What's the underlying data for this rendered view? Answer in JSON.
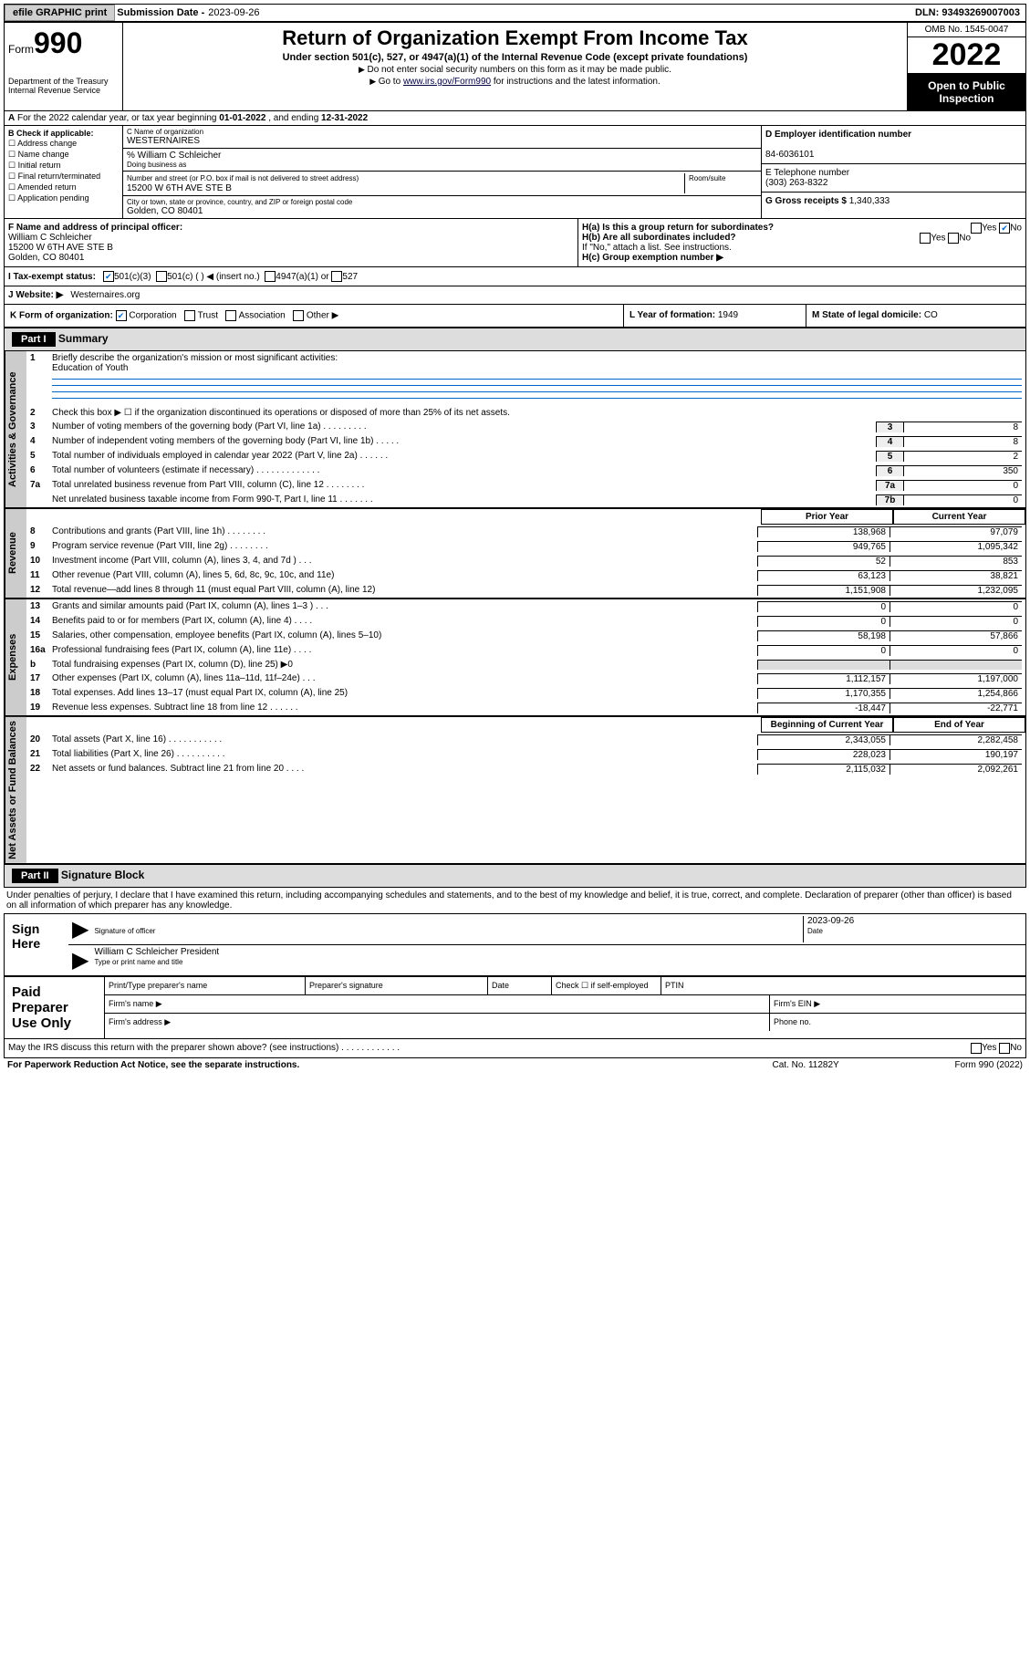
{
  "top": {
    "efile": "efile GRAPHIC print",
    "subdate_lbl": "Submission Date -",
    "subdate": "2023-09-26",
    "dln_lbl": "DLN:",
    "dln": "93493269007003"
  },
  "header": {
    "form_prefix": "Form",
    "form_num": "990",
    "dept": "Department of the Treasury\nInternal Revenue Service",
    "title": "Return of Organization Exempt From Income Tax",
    "subtitle": "Under section 501(c), 527, or 4947(a)(1) of the Internal Revenue Code (except private foundations)",
    "note1": "Do not enter social security numbers on this form as it may be made public.",
    "note2_pre": "Go to ",
    "note2_link": "www.irs.gov/Form990",
    "note2_post": " for instructions and the latest information.",
    "omb": "OMB No. 1545-0047",
    "year": "2022",
    "inspect": "Open to Public Inspection"
  },
  "lineA": {
    "text_pre": "For the 2022 calendar year, or tax year beginning ",
    "begin": "01-01-2022",
    "mid": " , and ending ",
    "end": "12-31-2022"
  },
  "colB": {
    "hdr": "B Check if applicable:",
    "items": [
      "Address change",
      "Name change",
      "Initial return",
      "Final return/terminated",
      "Amended return",
      "Application pending"
    ]
  },
  "colC": {
    "name_lbl": "C Name of organization",
    "name": "WESTERNAIRES",
    "care_lbl": "% William C Schleicher",
    "dba_lbl": "Doing business as",
    "dba": "",
    "street_lbl": "Number and street (or P.O. box if mail is not delivered to street address)",
    "street": "15200 W 6TH AVE STE B",
    "room_lbl": "Room/suite",
    "city_lbl": "City or town, state or province, country, and ZIP or foreign postal code",
    "city": "Golden, CO  80401"
  },
  "colD": {
    "ein_lbl": "D Employer identification number",
    "ein": "84-6036101",
    "tel_lbl": "E Telephone number",
    "tel": "(303) 263-8322",
    "gross_lbl": "G Gross receipts $",
    "gross": "1,340,333"
  },
  "rowF": {
    "lbl": "F Name and address of principal officer:",
    "name": "William C Schleicher",
    "addr1": "15200 W 6TH AVE STE B",
    "addr2": "Golden, CO  80401"
  },
  "rowH": {
    "ha": "H(a)  Is this a group return for subordinates?",
    "ha_yes": "Yes",
    "ha_no": "No",
    "hb": "H(b)  Are all subordinates included?",
    "hb_yes": "Yes",
    "hb_no": "No",
    "hb_note": "If \"No,\" attach a list. See instructions.",
    "hc": "H(c)  Group exemption number ▶"
  },
  "rowI": {
    "lbl": "I  Tax-exempt status:",
    "a": "501(c)(3)",
    "b": "501(c) (  ) ◀ (insert no.)",
    "c": "4947(a)(1) or",
    "d": "527"
  },
  "rowJ": {
    "lbl": "J  Website: ▶",
    "val": "Westernaires.org"
  },
  "rowK": {
    "lbl": "K Form of organization:",
    "corp": "Corporation",
    "trust": "Trust",
    "assoc": "Association",
    "other": "Other ▶",
    "L": "L Year of formation:",
    "Lval": "1949",
    "M": "M State of legal domicile:",
    "Mval": "CO"
  },
  "part1": {
    "hdr": "Part I",
    "title": "Summary",
    "q1": "Briefly describe the organization's mission or most significant activities:",
    "q1val": "Education of Youth",
    "q2": "Check this box ▶ ☐  if the organization discontinued its operations or disposed of more than 25% of its net assets.",
    "lines_gov": [
      {
        "n": "3",
        "t": "Number of voting members of the governing body (Part VI, line 1a)   .   .   .   .   .   .   .   .   .",
        "b": "3",
        "v": "8"
      },
      {
        "n": "4",
        "t": "Number of independent voting members of the governing body (Part VI, line 1b)   .   .   .   .   .",
        "b": "4",
        "v": "8"
      },
      {
        "n": "5",
        "t": "Total number of individuals employed in calendar year 2022 (Part V, line 2a)   .   .   .   .   .   .",
        "b": "5",
        "v": "2"
      },
      {
        "n": "6",
        "t": "Total number of volunteers (estimate if necessary)   .   .   .   .   .   .   .   .   .   .   .   .   .",
        "b": "6",
        "v": "350"
      },
      {
        "n": "7a",
        "t": "Total unrelated business revenue from Part VIII, column (C), line 12   .   .   .   .   .   .   .   .",
        "b": "7a",
        "v": "0"
      },
      {
        "n": "",
        "t": "Net unrelated business taxable income from Form 990-T, Part I, line 11   .   .   .   .   .   .   .",
        "b": "7b",
        "v": "0"
      }
    ],
    "col_prior": "Prior Year",
    "col_curr": "Current Year",
    "lines_rev": [
      {
        "n": "8",
        "t": "Contributions and grants (Part VIII, line 1h)   .   .   .   .   .   .   .   .",
        "v1": "138,968",
        "v2": "97,079"
      },
      {
        "n": "9",
        "t": "Program service revenue (Part VIII, line 2g)   .   .   .   .   .   .   .   .",
        "v1": "949,765",
        "v2": "1,095,342"
      },
      {
        "n": "10",
        "t": "Investment income (Part VIII, column (A), lines 3, 4, and 7d )   .   .   .",
        "v1": "52",
        "v2": "853"
      },
      {
        "n": "11",
        "t": "Other revenue (Part VIII, column (A), lines 5, 6d, 8c, 9c, 10c, and 11e)",
        "v1": "63,123",
        "v2": "38,821"
      },
      {
        "n": "12",
        "t": "Total revenue—add lines 8 through 11 (must equal Part VIII, column (A), line 12)",
        "v1": "1,151,908",
        "v2": "1,232,095"
      }
    ],
    "lines_exp": [
      {
        "n": "13",
        "t": "Grants and similar amounts paid (Part IX, column (A), lines 1–3 )   .   .   .",
        "v1": "0",
        "v2": "0"
      },
      {
        "n": "14",
        "t": "Benefits paid to or for members (Part IX, column (A), line 4)   .   .   .   .",
        "v1": "0",
        "v2": "0"
      },
      {
        "n": "15",
        "t": "Salaries, other compensation, employee benefits (Part IX, column (A), lines 5–10)",
        "v1": "58,198",
        "v2": "57,866"
      },
      {
        "n": "16a",
        "t": "Professional fundraising fees (Part IX, column (A), line 11e)   .   .   .   .",
        "v1": "0",
        "v2": "0"
      },
      {
        "n": "b",
        "t": "Total fundraising expenses (Part IX, column (D), line 25) ▶0",
        "v1": "",
        "v2": "",
        "shade": true
      },
      {
        "n": "17",
        "t": "Other expenses (Part IX, column (A), lines 11a–11d, 11f–24e)   .   .   .",
        "v1": "1,112,157",
        "v2": "1,197,000"
      },
      {
        "n": "18",
        "t": "Total expenses. Add lines 13–17 (must equal Part IX, column (A), line 25)",
        "v1": "1,170,355",
        "v2": "1,254,866"
      },
      {
        "n": "19",
        "t": "Revenue less expenses. Subtract line 18 from line 12   .   .   .   .   .   .",
        "v1": "-18,447",
        "v2": "-22,771"
      }
    ],
    "col_begin": "Beginning of Current Year",
    "col_end": "End of Year",
    "lines_net": [
      {
        "n": "20",
        "t": "Total assets (Part X, line 16)   .   .   .   .   .   .   .   .   .   .   .",
        "v1": "2,343,055",
        "v2": "2,282,458"
      },
      {
        "n": "21",
        "t": "Total liabilities (Part X, line 26)   .   .   .   .   .   .   .   .   .   .",
        "v1": "228,023",
        "v2": "190,197"
      },
      {
        "n": "22",
        "t": "Net assets or fund balances. Subtract line 21 from line 20   .   .   .   .",
        "v1": "2,115,032",
        "v2": "2,092,261"
      }
    ],
    "tab_gov": "Activities & Governance",
    "tab_rev": "Revenue",
    "tab_exp": "Expenses",
    "tab_net": "Net Assets or Fund Balances"
  },
  "part2": {
    "hdr": "Part II",
    "title": "Signature Block",
    "penalty": "Under penalties of perjury, I declare that I have examined this return, including accompanying schedules and statements, and to the best of my knowledge and belief, it is true, correct, and complete. Declaration of preparer (other than officer) is based on all information of which preparer has any knowledge.",
    "sign_here": "Sign Here",
    "sig_officer": "Signature of officer",
    "sig_date": "Date",
    "sig_date_val": "2023-09-26",
    "sig_name": "William C Schleicher  President",
    "sig_name_lbl": "Type or print name and title",
    "paid": "Paid Preparer Use Only",
    "p_name": "Print/Type preparer's name",
    "p_sig": "Preparer's signature",
    "p_date": "Date",
    "p_check": "Check ☐ if self-employed",
    "p_ptin": "PTIN",
    "p_firm": "Firm's name  ▶",
    "p_ein": "Firm's EIN ▶",
    "p_addr": "Firm's address ▶",
    "p_phone": "Phone no."
  },
  "footer": {
    "q": "May the IRS discuss this return with the preparer shown above? (see instructions)   .   .   .   .   .   .   .   .   .   .   .   .",
    "yes": "Yes",
    "no": "No",
    "pra": "For Paperwork Reduction Act Notice, see the separate instructions.",
    "cat": "Cat. No. 11282Y",
    "form": "Form 990 (2022)"
  }
}
